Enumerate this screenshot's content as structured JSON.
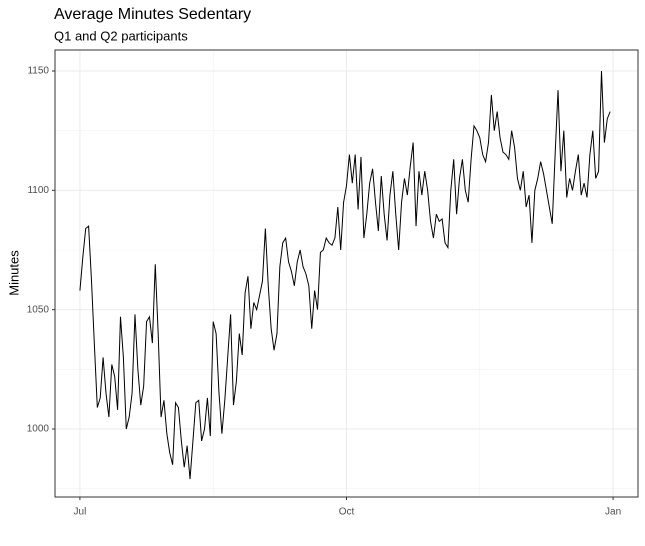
{
  "chart_data": {
    "type": "line",
    "title": "Average Minutes Sedentary",
    "subtitle": "Q1 and Q2 participants",
    "y_label": "Minutes",
    "color": "#000000",
    "grid": true,
    "categories": [
      "Jul",
      null,
      null,
      null,
      null,
      null,
      null,
      null,
      null,
      null,
      null,
      null,
      null,
      null,
      null,
      null,
      null,
      null,
      null,
      null,
      null,
      null,
      null,
      null,
      null,
      null,
      null,
      null,
      null,
      null,
      null,
      null,
      null,
      null,
      null,
      null,
      null,
      null,
      null,
      null,
      null,
      null,
      null,
      null,
      null,
      null,
      null,
      null,
      null,
      null,
      null,
      null,
      null,
      null,
      null,
      null,
      null,
      null,
      null,
      null,
      null,
      null,
      null,
      null,
      null,
      null,
      null,
      null,
      null,
      null,
      null,
      null,
      null,
      null,
      null,
      null,
      null,
      null,
      null,
      null,
      null,
      null,
      null,
      null,
      null,
      null,
      null,
      null,
      null,
      null,
      null,
      null,
      "Oct",
      null,
      null,
      null,
      null,
      null,
      null,
      null,
      null,
      null,
      null,
      null,
      null,
      null,
      null,
      null,
      null,
      null,
      null,
      null,
      null,
      null,
      null,
      null,
      null,
      null,
      null,
      null,
      null,
      null,
      null,
      null,
      null,
      null,
      null,
      null,
      null,
      null,
      null,
      null,
      null,
      null,
      null,
      null,
      null,
      null,
      null,
      null,
      null,
      null,
      null,
      null,
      null,
      null,
      null,
      null,
      null,
      null,
      null,
      null,
      null,
      null,
      null,
      null,
      null,
      null,
      null,
      null,
      null,
      null,
      null,
      null,
      null,
      null,
      null,
      null,
      null,
      null,
      null,
      null,
      null,
      null,
      null,
      null,
      null,
      null,
      null,
      null,
      null,
      null,
      null,
      null,
      "Jan"
    ],
    "values": [
      1058,
      1072,
      1084,
      1085,
      1062,
      1035,
      1009,
      1013,
      1030,
      1015,
      1005,
      1027,
      1022,
      1008,
      1047,
      1030,
      1000,
      1005,
      1015,
      1048,
      1025,
      1010,
      1018,
      1045,
      1047,
      1036,
      1069,
      1040,
      1005,
      1012,
      998,
      990,
      985,
      1011,
      1009,
      995,
      984,
      993,
      979,
      995,
      1011,
      1012,
      995,
      1000,
      1013,
      997,
      1045,
      1040,
      1015,
      998,
      1012,
      1030,
      1048,
      1010,
      1020,
      1040,
      1031,
      1057,
      1064,
      1042,
      1053,
      1050,
      1056,
      1062,
      1084,
      1060,
      1042,
      1033,
      1040,
      1068,
      1078,
      1080,
      1070,
      1066,
      1060,
      1070,
      1075,
      1068,
      1065,
      1060,
      1042,
      1058,
      1050,
      1074,
      1075,
      1080,
      1078,
      1077,
      1080,
      1093,
      1075,
      1095,
      1102,
      1115,
      1103,
      1115,
      1092,
      1114,
      1080,
      1090,
      1103,
      1109,
      1095,
      1083,
      1106,
      1090,
      1079,
      1098,
      1108,
      1090,
      1075,
      1095,
      1105,
      1098,
      1110,
      1120,
      1085,
      1108,
      1098,
      1108,
      1100,
      1087,
      1080,
      1090,
      1087,
      1088,
      1078,
      1076,
      1100,
      1113,
      1090,
      1105,
      1113,
      1100,
      1095,
      1113,
      1127,
      1125,
      1122,
      1115,
      1112,
      1120,
      1140,
      1125,
      1133,
      1122,
      1116,
      1115,
      1113,
      1125,
      1118,
      1105,
      1100,
      1108,
      1093,
      1098,
      1078,
      1100,
      1105,
      1112,
      1107,
      1100,
      1093,
      1086,
      1115,
      1142,
      1108,
      1125,
      1097,
      1105,
      1100,
      1108,
      1115,
      1098,
      1103,
      1097,
      1115,
      1125,
      1105,
      1108,
      1150,
      1120,
      1130,
      1133,
      null
    ],
    "ylim": [
      971.5,
      1158.8
    ],
    "yticks": [
      1000,
      1050,
      1100,
      1150
    ]
  }
}
